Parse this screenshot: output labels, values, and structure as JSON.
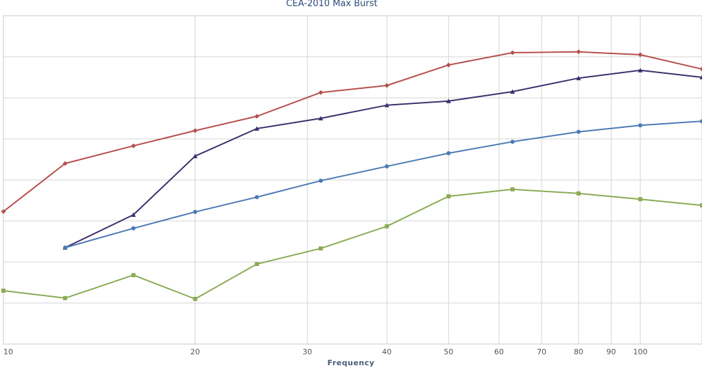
{
  "chart_data": {
    "type": "line",
    "title": "CEA-2010 Max Burst",
    "xlabel": "Frequency",
    "ylabel": "",
    "x_scale": "log",
    "xlim": [
      10,
      125
    ],
    "ylim": [
      0,
      8
    ],
    "grid": true,
    "x_ticks": [
      10,
      20,
      30,
      40,
      50,
      60,
      70,
      80,
      90,
      100
    ],
    "x": [
      10,
      12.5,
      16,
      20,
      25,
      31.5,
      40,
      50,
      63,
      80,
      100,
      125
    ],
    "series": [
      {
        "color": "#b5504d",
        "marker": "diamond",
        "values": [
          3.23,
          4.4,
          4.83,
          5.2,
          5.55,
          6.13,
          6.3,
          6.8,
          7.1,
          7.12,
          7.05,
          6.7
        ]
      },
      {
        "color": "#3f2e6c",
        "marker": "triangle",
        "values": [
          null,
          2.35,
          3.15,
          4.58,
          5.25,
          5.5,
          5.82,
          5.92,
          6.15,
          6.48,
          6.67,
          6.5
        ]
      },
      {
        "color": "#4a7ab5",
        "marker": "circle",
        "values": [
          null,
          2.35,
          2.82,
          3.22,
          3.58,
          3.98,
          4.33,
          4.65,
          4.93,
          5.17,
          5.33,
          5.43
        ]
      },
      {
        "color": "#8aab55",
        "marker": "square",
        "values": [
          1.3,
          1.12,
          1.68,
          1.1,
          1.95,
          2.33,
          2.87,
          3.6,
          3.77,
          3.67,
          3.53,
          3.38
        ]
      }
    ]
  }
}
